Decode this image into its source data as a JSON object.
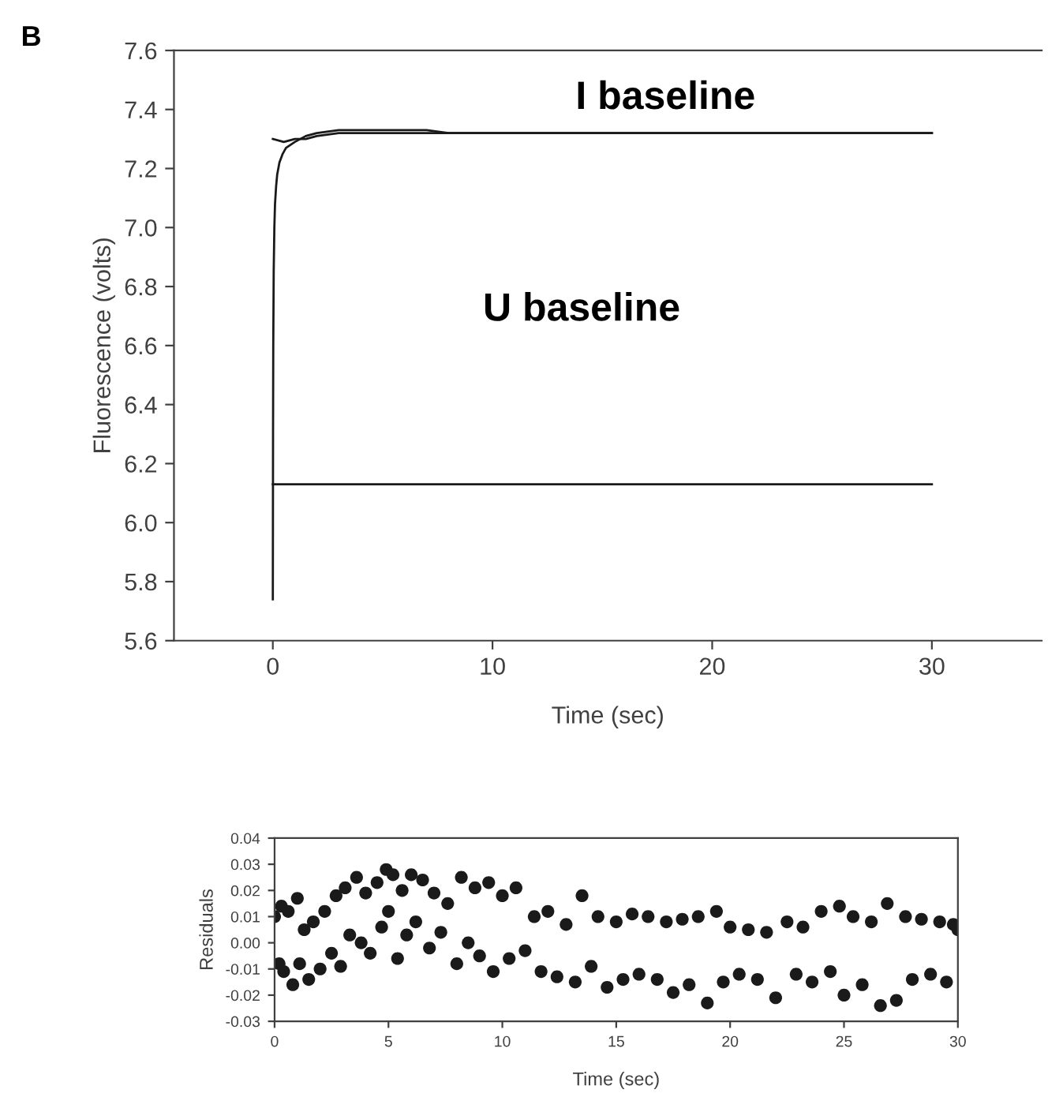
{
  "chart_data": [
    {
      "type": "line",
      "xlabel": "Time (sec)",
      "ylabel": "Fluorescence (volts)",
      "xlim": [
        -4.5,
        35
      ],
      "ylim": [
        5.6,
        7.6
      ],
      "xticks": [
        0,
        10,
        20,
        30
      ],
      "yticks": [
        5.6,
        5.8,
        {
          "value": 6.0,
          "label": "6.0"
        },
        6.2,
        6.4,
        6.6,
        6.8,
        {
          "value": 7.0,
          "label": "7.0"
        },
        7.2,
        7.4,
        7.6
      ],
      "grid": false,
      "marker": "none",
      "line_style": "solid",
      "annotations": [
        "B",
        "I baseline",
        "U baseline"
      ],
      "series": [
        {
          "color": "#1a1a1a",
          "x": [
            0,
            0.01,
            0.02,
            0.04,
            0.07,
            0.1,
            0.15,
            0.2,
            0.3,
            0.45,
            0.6,
            0.8,
            1.0,
            1.5,
            2,
            3,
            4,
            5,
            6,
            7,
            8,
            10,
            12,
            15,
            18,
            20,
            22,
            25,
            28,
            30
          ],
          "values": [
            5.74,
            6.3,
            6.6,
            6.85,
            7.0,
            7.08,
            7.14,
            7.18,
            7.22,
            7.25,
            7.27,
            7.28,
            7.29,
            7.31,
            7.32,
            7.33,
            7.33,
            7.33,
            7.33,
            7.33,
            7.32,
            7.32,
            7.32,
            7.32,
            7.32,
            7.32,
            7.32,
            7.32,
            7.32,
            7.32
          ]
        },
        {
          "color": "#1a1a1a",
          "x": [
            0,
            0.5,
            1,
            1.5,
            2,
            3,
            4,
            6,
            8,
            10,
            15,
            20,
            25,
            30
          ],
          "values": [
            7.3,
            7.29,
            7.3,
            7.3,
            7.31,
            7.32,
            7.32,
            7.32,
            7.32,
            7.32,
            7.32,
            7.32,
            7.32,
            7.32
          ]
        },
        {
          "color": "#1a1a1a",
          "x": [
            0,
            2,
            4,
            6,
            8,
            10,
            12,
            14,
            16,
            18,
            20,
            22,
            24,
            26,
            28,
            30
          ],
          "values": [
            6.13,
            6.13,
            6.13,
            6.13,
            6.13,
            6.13,
            6.13,
            6.13,
            6.13,
            6.13,
            6.13,
            6.13,
            6.13,
            6.13,
            6.13,
            6.13
          ]
        }
      ]
    },
    {
      "type": "scatter",
      "xlabel": "Time (sec)",
      "ylabel": "Residuals",
      "xlim": [
        0,
        30
      ],
      "ylim": [
        -0.03,
        0.04
      ],
      "xticks": [
        0,
        5,
        10,
        15,
        20,
        25,
        30
      ],
      "yticks": [
        {
          "value": -0.03,
          "label": "-0.03"
        },
        {
          "value": -0.02,
          "label": "-0.02"
        },
        {
          "value": -0.01,
          "label": "-0.01"
        },
        {
          "value": 0.0,
          "label": "0.00"
        },
        {
          "value": 0.01,
          "label": "0.01"
        },
        {
          "value": 0.02,
          "label": "0.02"
        },
        {
          "value": 0.03,
          "label": "0.03"
        },
        {
          "value": 0.04,
          "label": "0.04"
        }
      ],
      "grid": false,
      "marker": "circle",
      "series": [
        {
          "color": "#1a1a1a",
          "x": [
            0,
            0.2,
            0.3,
            0.4,
            0.6,
            0.8,
            1.0,
            1.1,
            1.3,
            1.5,
            1.7,
            2.0,
            2.2,
            2.5,
            2.7,
            2.9,
            3.1,
            3.3,
            3.6,
            3.8,
            4.0,
            4.2,
            4.5,
            4.7,
            4.9,
            5.0,
            5.2,
            5.4,
            5.6,
            5.8,
            6.0,
            6.2,
            6.5,
            6.8,
            7.0,
            7.3,
            7.6,
            8.0,
            8.2,
            8.5,
            8.8,
            9.0,
            9.4,
            9.6,
            10.0,
            10.3,
            10.6,
            11.0,
            11.4,
            11.7,
            12.0,
            12.4,
            12.8,
            13.2,
            13.5,
            13.9,
            14.2,
            14.6,
            15.0,
            15.3,
            15.7,
            16.0,
            16.4,
            16.8,
            17.2,
            17.5,
            17.9,
            18.2,
            18.6,
            19.0,
            19.4,
            19.7,
            20.0,
            20.4,
            20.8,
            21.2,
            21.6,
            22.0,
            22.5,
            22.9,
            23.2,
            23.6,
            24.0,
            24.4,
            24.8,
            25.0,
            25.4,
            25.8,
            26.2,
            26.6,
            26.9,
            27.3,
            27.7,
            28.0,
            28.4,
            28.8,
            29.2,
            29.5,
            29.8,
            30.0
          ],
          "values": [
            0.01,
            -0.008,
            0.014,
            -0.011,
            0.012,
            -0.016,
            0.017,
            -0.008,
            0.005,
            -0.014,
            0.008,
            -0.01,
            0.012,
            -0.004,
            0.018,
            -0.009,
            0.021,
            0.003,
            0.025,
            0.0,
            0.019,
            -0.004,
            0.023,
            0.006,
            0.028,
            0.012,
            0.026,
            -0.006,
            0.02,
            0.003,
            0.026,
            0.008,
            0.024,
            -0.002,
            0.019,
            0.004,
            0.015,
            -0.008,
            0.025,
            0.0,
            0.021,
            -0.005,
            0.023,
            -0.011,
            0.018,
            -0.006,
            0.021,
            -0.003,
            0.01,
            -0.011,
            0.012,
            -0.013,
            0.007,
            -0.015,
            0.018,
            -0.009,
            0.01,
            -0.017,
            0.008,
            -0.014,
            0.011,
            -0.012,
            0.01,
            -0.014,
            0.008,
            -0.019,
            0.009,
            -0.016,
            0.01,
            -0.023,
            0.012,
            -0.015,
            0.006,
            -0.012,
            0.005,
            -0.014,
            0.004,
            -0.021,
            0.008,
            -0.012,
            0.006,
            -0.015,
            0.012,
            -0.011,
            0.014,
            -0.02,
            0.01,
            -0.016,
            0.008,
            -0.024,
            0.015,
            -0.022,
            0.01,
            -0.014,
            0.009,
            -0.012,
            0.008,
            -0.015,
            0.007,
            0.005
          ]
        }
      ]
    }
  ]
}
